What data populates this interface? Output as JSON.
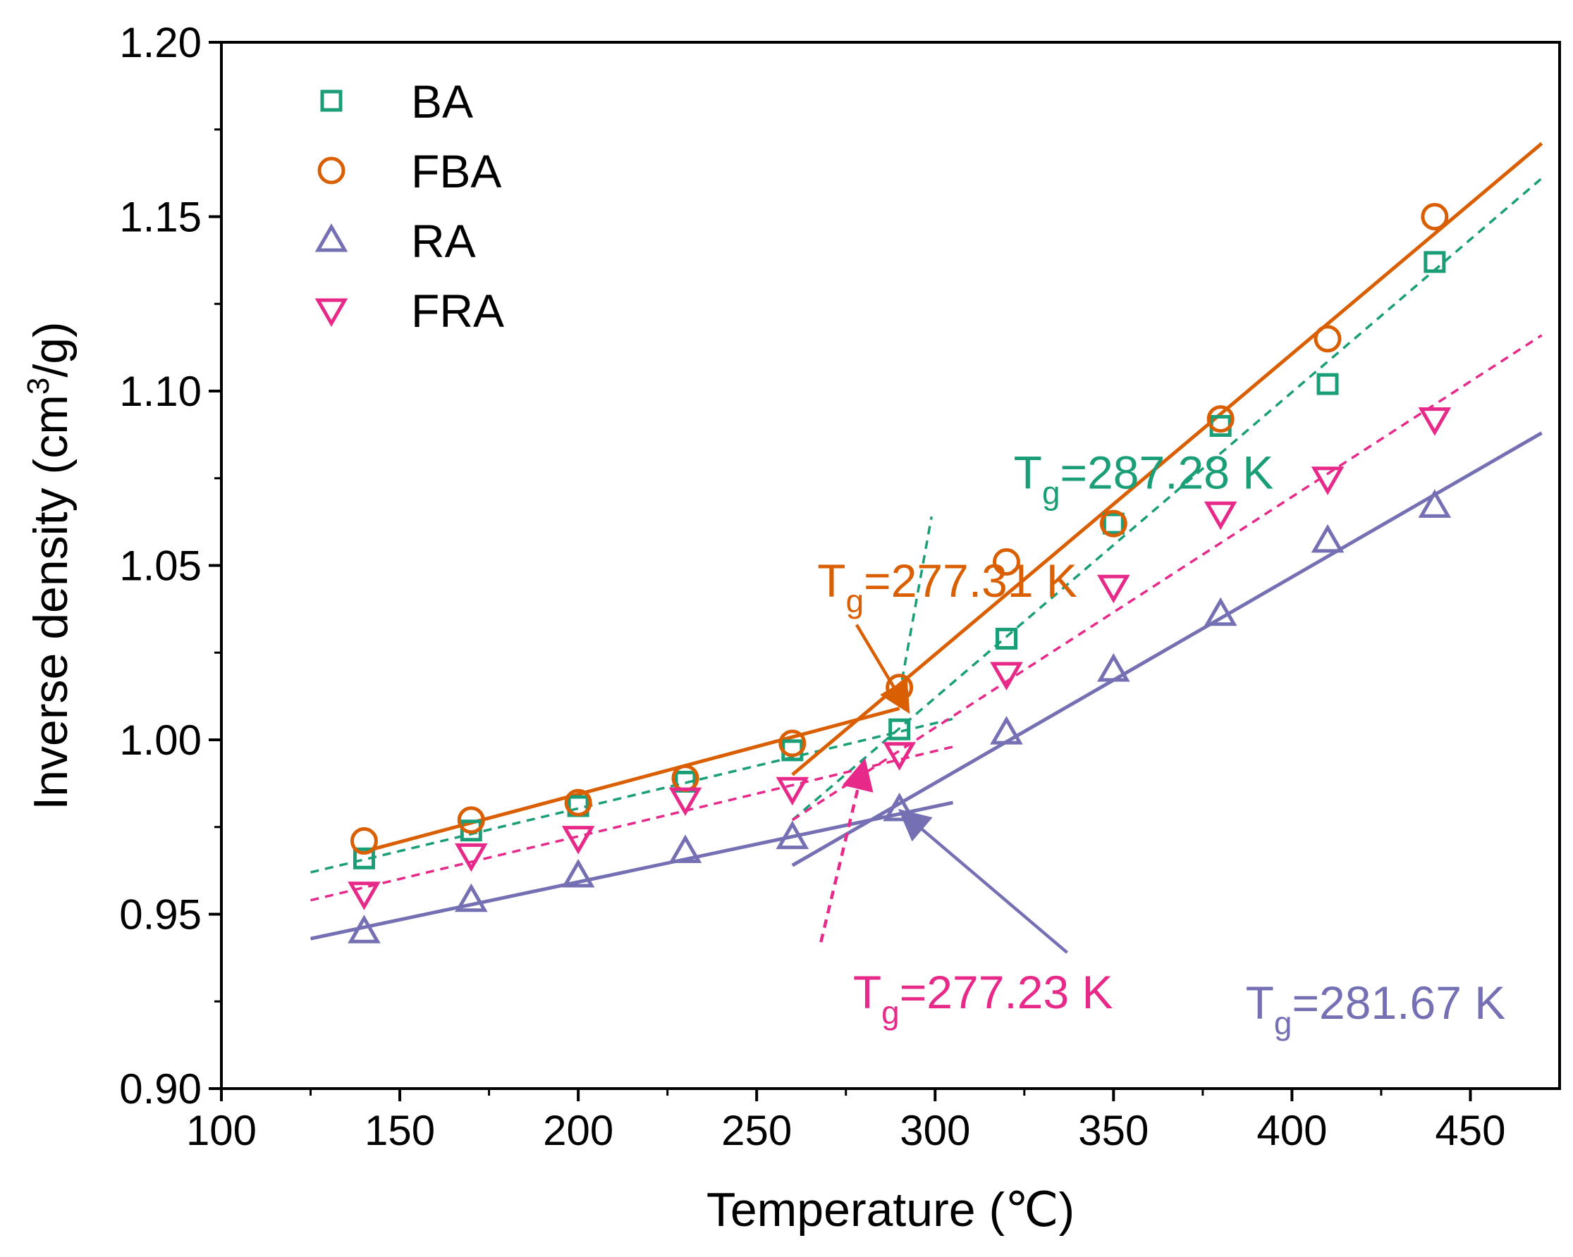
{
  "chart_data": {
    "type": "scatter",
    "title": "",
    "xlabel": "Temperature (℃)",
    "ylabel_main": "Inverse density (cm",
    "ylabel_sup": "3",
    "ylabel_end": "/g)",
    "xlim": [
      100,
      475
    ],
    "ylim": [
      0.9,
      1.2
    ],
    "xticks": [
      "100",
      "150",
      "200",
      "250",
      "300",
      "350",
      "400",
      "450"
    ],
    "yticks": [
      "0.90",
      "0.95",
      "1.00",
      "1.05",
      "1.10",
      "1.15",
      "1.20"
    ],
    "grid": false,
    "legend_position": "top-left",
    "x": [
      140,
      170,
      200,
      230,
      260,
      290,
      320,
      350,
      380,
      410,
      440
    ],
    "series": [
      {
        "name": "BA",
        "marker": "square",
        "color": "#1a9e77",
        "dashed": true,
        "values": [
          0.966,
          0.974,
          0.981,
          0.988,
          0.997,
          1.003,
          1.029,
          1.062,
          1.09,
          1.102,
          1.137
        ],
        "fit_low": [
          [
            125,
            0.962
          ],
          [
            305,
            1.006
          ]
        ],
        "fit_high": [
          [
            260,
            0.977
          ],
          [
            470,
            1.161
          ]
        ],
        "fit_extra": [
          [
            290,
            1.013
          ],
          [
            299,
            1.064
          ]
        ]
      },
      {
        "name": "FBA",
        "marker": "circle",
        "color": "#d95f02",
        "dashed": false,
        "values": [
          0.971,
          0.977,
          0.982,
          0.989,
          0.999,
          1.015,
          1.051,
          1.062,
          1.092,
          1.115,
          1.15
        ],
        "fit_low": [
          [
            140,
            0.968
          ],
          [
            290,
            1.009
          ]
        ],
        "fit_high": [
          [
            260,
            0.99
          ],
          [
            470,
            1.171
          ]
        ]
      },
      {
        "name": "RA",
        "marker": "triangle-up",
        "color": "#7570b3",
        "dashed": false,
        "values": [
          0.945,
          0.954,
          0.961,
          0.968,
          0.972,
          0.98,
          1.002,
          1.02,
          1.036,
          1.057,
          1.067
        ],
        "fit_low": [
          [
            125,
            0.943
          ],
          [
            305,
            0.982
          ]
        ],
        "fit_high": [
          [
            260,
            0.964
          ],
          [
            470,
            1.088
          ]
        ]
      },
      {
        "name": "FRA",
        "marker": "triangle-down",
        "color": "#e7298a",
        "dashed": true,
        "values": [
          0.956,
          0.967,
          0.972,
          0.983,
          0.986,
          0.996,
          1.019,
          1.044,
          1.065,
          1.075,
          1.092
        ],
        "fit_low": [
          [
            125,
            0.954
          ],
          [
            305,
            0.998
          ]
        ],
        "fit_high": [
          [
            260,
            0.977
          ],
          [
            470,
            1.116
          ]
        ]
      }
    ],
    "annotations": [
      {
        "main": "T",
        "sub": "g",
        "rest": "=287.28 K",
        "color": "#1a9e77",
        "series": "BA",
        "at": [
          322,
          1.072
        ],
        "arrow": null
      },
      {
        "main": "T",
        "sub": "g",
        "rest": "=277.31 K",
        "color": "#d95f02",
        "series": "FBA",
        "at": [
          267,
          1.041
        ],
        "arrow": [
          [
            278,
            1.033
          ],
          [
            292,
            1.009
          ]
        ],
        "arrow_dashed": false
      },
      {
        "main": "T",
        "sub": "g",
        "rest": "=277.23 K",
        "color": "#e7298a",
        "series": "FRA",
        "at": [
          277,
          0.923
        ],
        "arrow": [
          [
            268,
            0.942
          ],
          [
            280,
            0.993
          ]
        ],
        "arrow_dashed": true
      },
      {
        "main": "T",
        "sub": "g",
        "rest": "=281.67 K",
        "color": "#7570b3",
        "series": "RA",
        "at": [
          387,
          0.92
        ],
        "arrow": [
          [
            337,
            0.939
          ],
          [
            291,
            0.979
          ]
        ],
        "arrow_dashed": false
      }
    ]
  }
}
